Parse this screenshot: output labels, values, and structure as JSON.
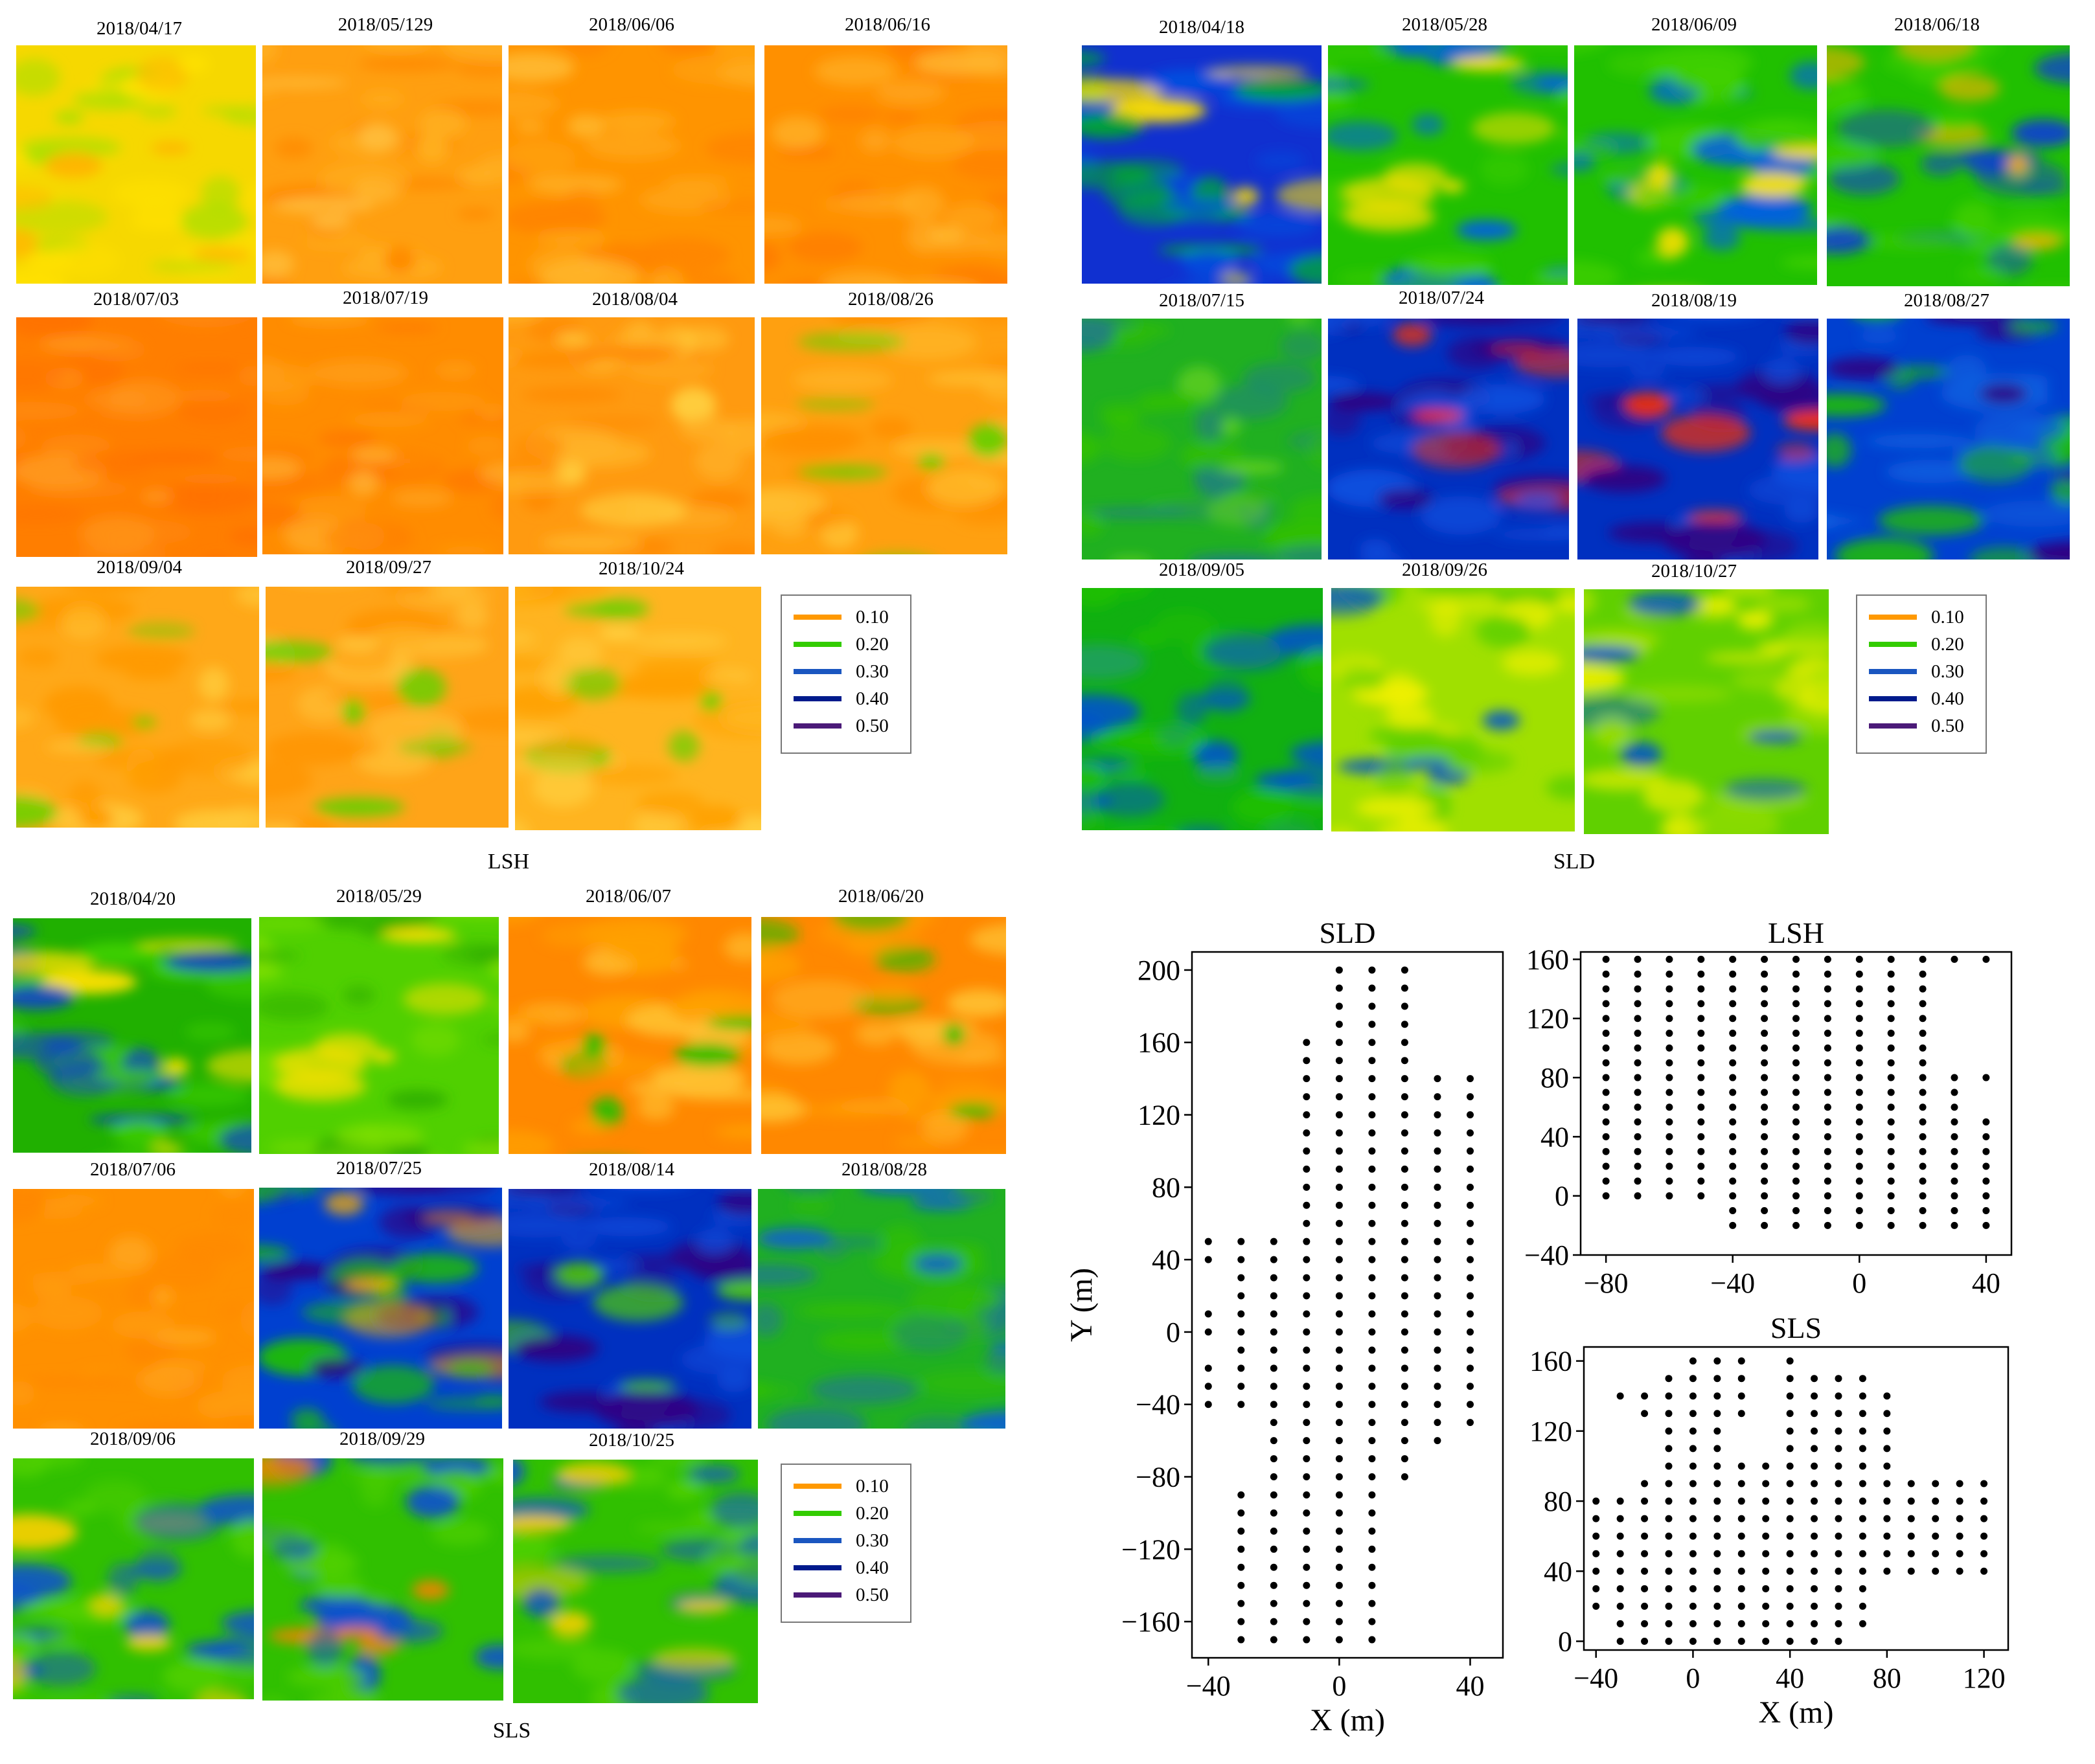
{
  "colors": {
    "orange": "#ff9900",
    "green": "#33cc00",
    "blue": "#1a50d0",
    "navy": "#00008b",
    "purple": "#4b1a78"
  },
  "legend": [
    {
      "label": "0.10",
      "color": "#ff9900"
    },
    {
      "label": "0.20",
      "color": "#33cc00"
    },
    {
      "label": "0.30",
      "color": "#1a56c0"
    },
    {
      "label": "0.40",
      "color": "#001a8c"
    },
    {
      "label": "0.50",
      "color": "#4b1a78"
    }
  ],
  "panels": {
    "LSH": {
      "label": "LSH",
      "dates": [
        "2018/04/17",
        "2018/05/129",
        "2018/06/06",
        "2018/06/16",
        "2018/07/03",
        "2018/07/19",
        "2018/08/04",
        "2018/08/26",
        "2018/09/04",
        "2018/09/27",
        "2018/10/24"
      ],
      "palettes": [
        [
          "#f6d800",
          "#ffe100",
          "#a8e000",
          "#ffb400"
        ],
        [
          "#ff9f10",
          "#ffb020",
          "#ff8a00",
          "#ffc040"
        ],
        [
          "#ff9400",
          "#ffa818",
          "#ff8400",
          "#ffb830"
        ],
        [
          "#ff9000",
          "#ffa820",
          "#ff7c00",
          "#ffb830"
        ],
        [
          "#ff7e00",
          "#ff8a10",
          "#ff7200",
          "#ff9a20"
        ],
        [
          "#ff8c00",
          "#ffa018",
          "#ff7a00",
          "#ffae30"
        ],
        [
          "#ff9a10",
          "#ffb428",
          "#ff8800",
          "#ffd040"
        ],
        [
          "#ffa010",
          "#ffc030",
          "#ff9000",
          "#66d000"
        ],
        [
          "#ffa818",
          "#ffc838",
          "#ff9a00",
          "#66d000"
        ],
        [
          "#ffa418",
          "#ffc438",
          "#ff9400",
          "#66d000"
        ],
        [
          "#ffb420",
          "#ffd040",
          "#ffa000",
          "#66d000"
        ]
      ]
    },
    "SLD": {
      "label": "SLD",
      "dates": [
        "2018/04/18",
        "2018/05/28",
        "2018/06/09",
        "2018/06/18",
        "2018/07/15",
        "2018/07/24",
        "2018/08/19",
        "2018/08/27",
        "2018/09/05",
        "2018/09/26",
        "2018/10/27"
      ],
      "palettes": [
        [
          "#1030d0",
          "#0050e0",
          "#00b020",
          "#ffe000"
        ],
        [
          "#20c000",
          "#40d000",
          "#0060e0",
          "#ffe000"
        ],
        [
          "#20c000",
          "#40d000",
          "#0060e0",
          "#ffe000"
        ],
        [
          "#20c000",
          "#40d000",
          "#1040d0",
          "#ffb000"
        ],
        [
          "#20b020",
          "#30c000",
          "#208080",
          "#60d020"
        ],
        [
          "#0030c0",
          "#1050e0",
          "#300080",
          "#ff3000"
        ],
        [
          "#0030c0",
          "#1050e0",
          "#300080",
          "#ff3000"
        ],
        [
          "#0040d0",
          "#1060e0",
          "#20c000",
          "#300080"
        ],
        [
          "#10b010",
          "#0050d0",
          "#20c000",
          "#20a060"
        ],
        [
          "#a0e000",
          "#60d000",
          "#f0f000",
          "#0050d0"
        ],
        [
          "#60d000",
          "#a0e000",
          "#f0f000",
          "#0050d0"
        ]
      ]
    },
    "SLS": {
      "label": "SLS",
      "dates": [
        "2018/04/20",
        "2018/05/29",
        "2018/06/07",
        "2018/06/20",
        "2018/07/06",
        "2018/07/25",
        "2018/08/14",
        "2018/08/28",
        "2018/09/06",
        "2018/09/29",
        "2018/10/25"
      ],
      "palettes": [
        [
          "#20b000",
          "#40d000",
          "#1040d0",
          "#ffe000"
        ],
        [
          "#50d000",
          "#80e000",
          "#30b000",
          "#ffe000"
        ],
        [
          "#ff8800",
          "#ffa000",
          "#ffc030",
          "#20c000"
        ],
        [
          "#ff8800",
          "#ffa000",
          "#ffc030",
          "#20c000"
        ],
        [
          "#ff9000",
          "#ff9c10",
          "#ff8800",
          "#ffa820"
        ],
        [
          "#0040d0",
          "#20c000",
          "#300080",
          "#ffb000"
        ],
        [
          "#0030c0",
          "#1050e0",
          "#300080",
          "#50d000"
        ],
        [
          "#20b020",
          "#30c000",
          "#208080",
          "#1060d0"
        ],
        [
          "#30c000",
          "#1050d0",
          "#50d000",
          "#ffd000"
        ],
        [
          "#30c000",
          "#1050d0",
          "#50d000",
          "#ff8000"
        ],
        [
          "#30c000",
          "#1050d0",
          "#50d000",
          "#ffd000"
        ]
      ]
    }
  },
  "chart_data": [
    {
      "type": "scatter",
      "title": "SLD",
      "xlabel": "X (m)",
      "ylabel": "Y (m)",
      "xlim": [
        -45,
        50
      ],
      "ylim": [
        -180,
        210
      ],
      "xticks": [
        -40,
        0,
        40
      ],
      "yticks": [
        200,
        160,
        120,
        80,
        40,
        0,
        -40,
        -80,
        -120,
        -160
      ],
      "columns": [
        {
          "x": -40,
          "y": [
            50,
            40,
            10,
            0,
            -20,
            -30,
            -40
          ]
        },
        {
          "x": -30,
          "y": [
            50,
            40,
            30,
            20,
            10,
            0,
            -10,
            -20,
            -30,
            -40,
            -90,
            -100,
            -110,
            -120,
            -130,
            -140,
            -150,
            -160,
            -170
          ]
        },
        {
          "x": -20,
          "y": [
            50,
            40,
            30,
            20,
            10,
            0,
            -10,
            -20,
            -30,
            -40,
            -50,
            -60,
            -70,
            -80,
            -90,
            -100,
            -110,
            -120,
            -130,
            -140,
            -150,
            -160,
            -170
          ]
        },
        {
          "x": -10,
          "y": [
            160,
            150,
            140,
            130,
            120,
            110,
            100,
            90,
            80,
            70,
            60,
            50,
            40,
            30,
            20,
            10,
            0,
            -10,
            -20,
            -30,
            -40,
            -50,
            -60,
            -70,
            -80,
            -90,
            -100,
            -110,
            -120,
            -130,
            -140,
            -150,
            -160,
            -170
          ]
        },
        {
          "x": 0,
          "y": [
            200,
            190,
            180,
            170,
            160,
            150,
            140,
            130,
            120,
            110,
            100,
            90,
            80,
            70,
            60,
            50,
            40,
            30,
            20,
            10,
            0,
            -10,
            -20,
            -30,
            -40,
            -50,
            -60,
            -70,
            -80,
            -90,
            -100,
            -110,
            -120,
            -130,
            -140,
            -150,
            -160,
            -170
          ]
        },
        {
          "x": 10,
          "y": [
            200,
            190,
            180,
            170,
            160,
            150,
            140,
            130,
            120,
            110,
            100,
            90,
            80,
            70,
            60,
            50,
            40,
            30,
            20,
            10,
            0,
            -10,
            -20,
            -30,
            -40,
            -50,
            -60,
            -70,
            -80,
            -90,
            -100,
            -110,
            -120,
            -130,
            -140,
            -150,
            -160,
            -170
          ]
        },
        {
          "x": 20,
          "y": [
            200,
            190,
            180,
            170,
            160,
            150,
            140,
            130,
            120,
            110,
            100,
            90,
            80,
            70,
            60,
            50,
            40,
            30,
            20,
            10,
            0,
            -10,
            -20,
            -30,
            -40,
            -50,
            -60,
            -70,
            -80
          ]
        },
        {
          "x": 30,
          "y": [
            140,
            130,
            120,
            110,
            100,
            90,
            80,
            70,
            60,
            50,
            40,
            30,
            20,
            10,
            0,
            -10,
            -20,
            -30,
            -40,
            -50,
            -60
          ]
        },
        {
          "x": 40,
          "y": [
            140,
            130,
            120,
            110,
            100,
            90,
            80,
            70,
            60,
            50,
            40,
            30,
            20,
            10,
            0,
            -10,
            -20,
            -30,
            -40,
            -50
          ]
        }
      ]
    },
    {
      "type": "scatter",
      "title": "LSH",
      "xlabel": "",
      "ylabel": "",
      "xlim": [
        -88,
        48
      ],
      "ylim": [
        -40,
        165
      ],
      "xticks": [
        -80,
        -40,
        0,
        40
      ],
      "yticks": [
        160,
        120,
        80,
        40,
        0,
        -40
      ],
      "columns": [
        {
          "x": -80,
          "y": [
            160,
            150,
            140,
            130,
            120,
            110,
            100,
            90,
            80,
            70,
            60,
            50,
            40,
            30,
            20,
            10,
            0
          ]
        },
        {
          "x": -70,
          "y": [
            160,
            150,
            140,
            130,
            120,
            110,
            100,
            90,
            80,
            70,
            60,
            50,
            40,
            30,
            20,
            10,
            0
          ]
        },
        {
          "x": -60,
          "y": [
            160,
            150,
            140,
            130,
            120,
            110,
            100,
            90,
            80,
            70,
            60,
            50,
            40,
            30,
            20,
            10,
            0
          ]
        },
        {
          "x": -50,
          "y": [
            160,
            150,
            140,
            130,
            120,
            110,
            100,
            90,
            80,
            70,
            60,
            50,
            40,
            30,
            20,
            10,
            0
          ]
        },
        {
          "x": -40,
          "y": [
            160,
            150,
            140,
            130,
            120,
            110,
            100,
            90,
            80,
            70,
            60,
            50,
            40,
            30,
            20,
            10,
            0,
            -10,
            -20
          ]
        },
        {
          "x": -30,
          "y": [
            160,
            150,
            140,
            130,
            120,
            110,
            100,
            90,
            80,
            70,
            60,
            50,
            40,
            30,
            20,
            10,
            0,
            -10,
            -20
          ]
        },
        {
          "x": -20,
          "y": [
            160,
            150,
            140,
            130,
            120,
            110,
            100,
            90,
            80,
            70,
            60,
            50,
            40,
            30,
            20,
            10,
            0,
            -10,
            -20
          ]
        },
        {
          "x": -10,
          "y": [
            160,
            150,
            140,
            130,
            120,
            110,
            100,
            90,
            80,
            70,
            60,
            50,
            40,
            30,
            20,
            10,
            0,
            -10,
            -20
          ]
        },
        {
          "x": 0,
          "y": [
            160,
            150,
            140,
            130,
            120,
            110,
            100,
            90,
            80,
            70,
            60,
            50,
            40,
            30,
            20,
            10,
            0,
            -10,
            -20
          ]
        },
        {
          "x": 10,
          "y": [
            160,
            150,
            140,
            130,
            120,
            110,
            100,
            90,
            80,
            70,
            60,
            50,
            40,
            30,
            20,
            10,
            0,
            -10,
            -20
          ]
        },
        {
          "x": 20,
          "y": [
            160,
            150,
            140,
            130,
            120,
            110,
            100,
            90,
            80,
            70,
            60,
            50,
            40,
            30,
            20,
            10,
            0,
            -10,
            -20
          ]
        },
        {
          "x": 30,
          "y": [
            160,
            80,
            70,
            60,
            50,
            40,
            30,
            20,
            10,
            0,
            -10,
            -20
          ]
        },
        {
          "x": 40,
          "y": [
            160,
            80,
            50,
            40,
            30,
            20,
            10,
            0,
            -10,
            -20
          ]
        }
      ]
    },
    {
      "type": "scatter",
      "title": "SLS",
      "xlabel": "X (m)",
      "ylabel": "",
      "xlim": [
        -45,
        130
      ],
      "ylim": [
        -5,
        168
      ],
      "xticks": [
        -40,
        0,
        40,
        80,
        120
      ],
      "yticks": [
        160,
        120,
        80,
        40,
        0
      ],
      "columns": [
        {
          "x": -40,
          "y": [
            80,
            70,
            60,
            50,
            40,
            30,
            20
          ]
        },
        {
          "x": -30,
          "y": [
            140,
            80,
            70,
            60,
            50,
            40,
            30,
            20,
            10,
            0
          ]
        },
        {
          "x": -20,
          "y": [
            140,
            130,
            90,
            80,
            70,
            60,
            50,
            40,
            30,
            20,
            10,
            0
          ]
        },
        {
          "x": -10,
          "y": [
            150,
            140,
            130,
            120,
            110,
            100,
            90,
            80,
            70,
            60,
            50,
            40,
            30,
            20,
            10,
            0
          ]
        },
        {
          "x": 0,
          "y": [
            160,
            150,
            140,
            130,
            120,
            110,
            100,
            90,
            80,
            70,
            60,
            50,
            40,
            30,
            20,
            10,
            0
          ]
        },
        {
          "x": 10,
          "y": [
            160,
            150,
            140,
            130,
            120,
            110,
            100,
            90,
            80,
            70,
            60,
            50,
            40,
            30,
            20,
            10,
            0
          ]
        },
        {
          "x": 20,
          "y": [
            160,
            150,
            140,
            130,
            100,
            90,
            80,
            70,
            60,
            50,
            40,
            30,
            20,
            10,
            0
          ]
        },
        {
          "x": 30,
          "y": [
            100,
            90,
            80,
            70,
            60,
            50,
            40,
            30,
            20,
            10,
            0
          ]
        },
        {
          "x": 40,
          "y": [
            160,
            150,
            140,
            130,
            120,
            110,
            100,
            90,
            80,
            70,
            60,
            50,
            40,
            30,
            20,
            10,
            0
          ]
        },
        {
          "x": 50,
          "y": [
            150,
            140,
            130,
            120,
            110,
            100,
            90,
            80,
            70,
            60,
            50,
            40,
            30,
            20,
            10,
            0
          ]
        },
        {
          "x": 60,
          "y": [
            150,
            140,
            130,
            120,
            110,
            100,
            90,
            80,
            70,
            60,
            50,
            40,
            30,
            20,
            10,
            0
          ]
        },
        {
          "x": 70,
          "y": [
            150,
            140,
            130,
            120,
            110,
            100,
            90,
            80,
            70,
            60,
            50,
            40,
            30,
            20,
            10
          ]
        },
        {
          "x": 80,
          "y": [
            140,
            130,
            120,
            110,
            100,
            90,
            80,
            70,
            60,
            50,
            40
          ]
        },
        {
          "x": 90,
          "y": [
            90,
            80,
            70,
            60,
            50,
            40
          ]
        },
        {
          "x": 100,
          "y": [
            90,
            80,
            70,
            60,
            50,
            40
          ]
        },
        {
          "x": 110,
          "y": [
            90,
            80,
            70,
            60,
            50,
            40
          ]
        },
        {
          "x": 120,
          "y": [
            90,
            80,
            70,
            60,
            50,
            40
          ]
        }
      ]
    }
  ]
}
